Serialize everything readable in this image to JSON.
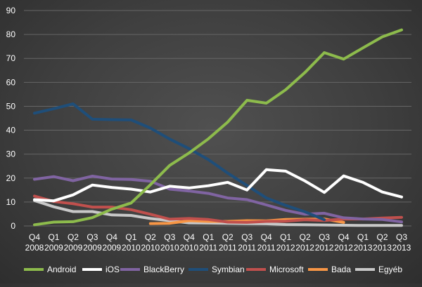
{
  "chart_data": {
    "type": "line",
    "title": "",
    "xlabel": "",
    "ylabel": "",
    "ylim": [
      0,
      90
    ],
    "yticks": [
      0,
      10,
      20,
      30,
      40,
      50,
      60,
      70,
      80,
      90
    ],
    "grid": true,
    "legend_position": "bottom",
    "categories": [
      [
        "Q4",
        "2008"
      ],
      [
        "Q1",
        "2009"
      ],
      [
        "Q2",
        "2009"
      ],
      [
        "Q3",
        "2009"
      ],
      [
        "Q4",
        "2009"
      ],
      [
        "Q1",
        "2010"
      ],
      [
        "Q2",
        "2010"
      ],
      [
        "Q3",
        "2010"
      ],
      [
        "Q4",
        "2010"
      ],
      [
        "Q1",
        "2011"
      ],
      [
        "Q2",
        "2011"
      ],
      [
        "Q3",
        "2011"
      ],
      [
        "Q4",
        "2011"
      ],
      [
        "Q1",
        "2012"
      ],
      [
        "Q2",
        "2012"
      ],
      [
        "Q3",
        "2012"
      ],
      [
        "Q4",
        "2012"
      ],
      [
        "Q1",
        "2013"
      ],
      [
        "Q2",
        "2013"
      ],
      [
        "Q3",
        "2013"
      ]
    ],
    "series": [
      {
        "name": "Android",
        "color": "#8dbb4c",
        "values": [
          0.5,
          1.6,
          1.8,
          3.5,
          7.0,
          9.6,
          17.2,
          25.3,
          30.5,
          36.4,
          43.4,
          52.5,
          51.3,
          56.9,
          64.1,
          72.4,
          69.7,
          74.4,
          79.0,
          81.9
        ]
      },
      {
        "name": "iOS",
        "color": "#ffffff",
        "values": [
          11.0,
          10.5,
          13.0,
          17.1,
          16.1,
          15.4,
          14.2,
          16.6,
          15.9,
          16.8,
          18.2,
          15.0,
          23.5,
          22.9,
          18.8,
          14.0,
          20.9,
          18.2,
          14.2,
          12.1
        ]
      },
      {
        "name": "BlackBerry",
        "color": "#8064a2",
        "values": [
          19.5,
          20.6,
          18.9,
          20.8,
          19.6,
          19.4,
          18.7,
          15.4,
          14.6,
          13.6,
          11.7,
          11.0,
          8.8,
          6.5,
          4.9,
          5.3,
          3.4,
          2.9,
          2.7,
          1.7
        ]
      },
      {
        "name": "Symbian",
        "color": "#1f4e79",
        "values": [
          47.1,
          49.0,
          51.0,
          44.6,
          44.4,
          44.3,
          40.9,
          36.3,
          32.3,
          27.7,
          22.1,
          16.9,
          11.7,
          8.6,
          5.9,
          2.6,
          null,
          null,
          null,
          null
        ]
      },
      {
        "name": "Microsoft",
        "color": "#c0504d",
        "values": [
          12.5,
          10.2,
          9.3,
          7.9,
          7.9,
          6.8,
          4.9,
          2.8,
          3.1,
          2.7,
          1.6,
          1.5,
          1.9,
          2.0,
          2.6,
          2.3,
          2.9,
          2.9,
          3.3,
          3.6
        ]
      },
      {
        "name": "Bada",
        "color": "#f79646",
        "values": [
          null,
          null,
          null,
          null,
          null,
          null,
          1.0,
          1.1,
          2.2,
          1.9,
          1.9,
          2.2,
          2.1,
          2.7,
          2.8,
          2.9,
          1.5,
          null,
          null,
          null
        ]
      },
      {
        "name": "Egyéb",
        "color": "#c8c8c8",
        "values": [
          10.6,
          8.0,
          6.0,
          6.0,
          4.6,
          4.4,
          3.1,
          2.2,
          1.3,
          1.2,
          1.1,
          1.0,
          0.9,
          0.6,
          0.5,
          0.4,
          0.3,
          0.2,
          0.2,
          0.2
        ]
      }
    ]
  },
  "colors": {
    "gridline": "#666666",
    "axis_text": "#ffffff"
  }
}
